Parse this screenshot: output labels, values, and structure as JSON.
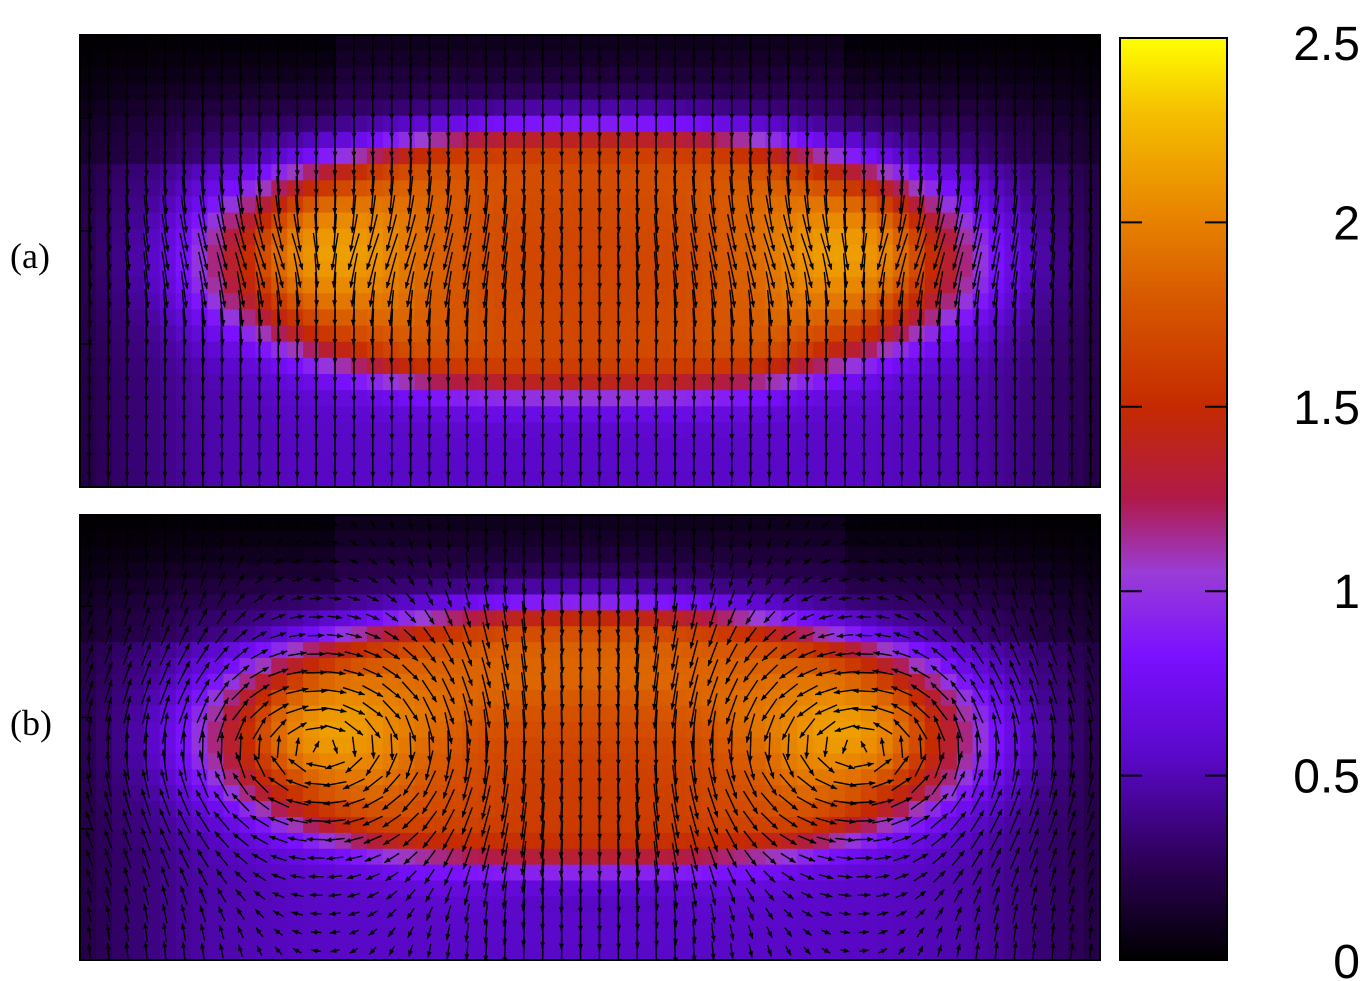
{
  "chart_data": {
    "type": "heatmap",
    "title": "",
    "panels": [
      {
        "label": "(a)",
        "field": "density",
        "arrows": "vector field, predominantly downward; converging toward the two bright lobes"
      },
      {
        "label": "(b)",
        "field": "density",
        "arrows": "vector field forming two vortices around the central core"
      }
    ],
    "colorbar": {
      "min": 0,
      "max": 2.5,
      "ticks": [
        0,
        0.5,
        1,
        1.5,
        2,
        2.5
      ],
      "tick_labels": [
        "0",
        "0.5",
        "1",
        "1.5",
        "2",
        "2.5"
      ],
      "colormap": [
        "#000000",
        "#2a0052",
        "#7a10ff",
        "#9a3cd6",
        "#b01a4a",
        "#c52a00",
        "#e06a00",
        "#efa000",
        "#ffff00"
      ]
    },
    "grid": false,
    "legend": "none"
  }
}
